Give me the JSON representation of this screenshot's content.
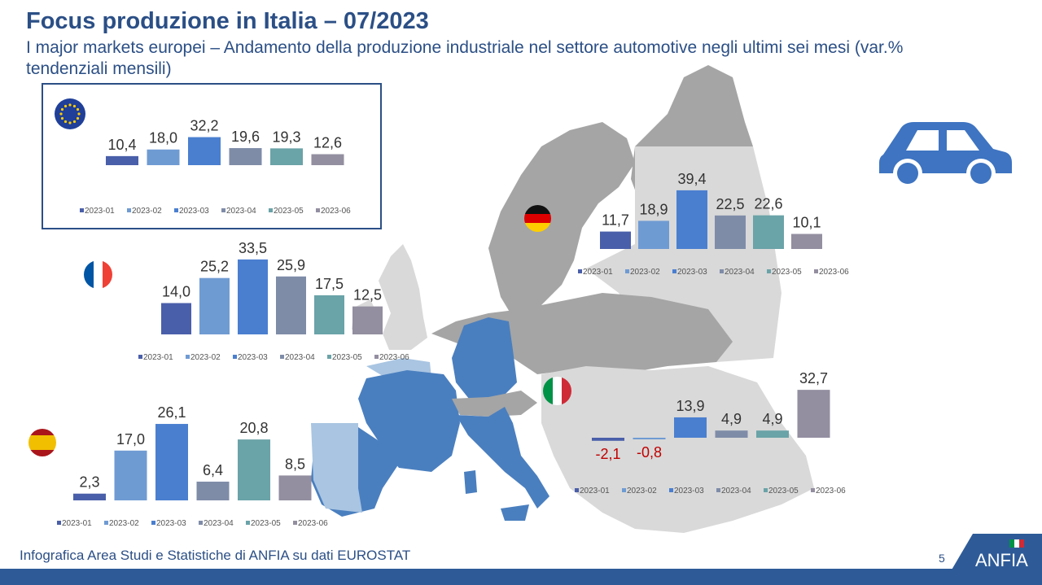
{
  "header": {
    "title": "Focus produzione in Italia – 07/2023",
    "subtitle": "I major markets europei – Andamento della produzione industriale nel settore automotive negli ultimi sei mesi (var.% tendenziali mensili)"
  },
  "footer": {
    "source_text": "Infografica Area Studi e Statistiche di ANFIA su dati EUROSTAT",
    "page_number": "5",
    "logo_text": "ANFIA"
  },
  "icons": {
    "car": "car-icon",
    "eu_flag": "eu-flag-icon",
    "de_flag": "germany-flag-icon",
    "fr_flag": "france-flag-icon",
    "it_flag": "italy-flag-icon",
    "es_flag": "spain-flag-icon"
  },
  "colors": {
    "title": "#2b4f86",
    "negative_label": "#c00000",
    "map_highlight": "#4a7fbf",
    "map_light": "#a9c5e2",
    "map_grey": "#a5a5a5",
    "map_light_grey": "#d9d9d9"
  },
  "chart_data": [
    {
      "id": "eu",
      "type": "bar",
      "categories": [
        "2023-01",
        "2023-02",
        "2023-03",
        "2023-04",
        "2023-05",
        "2023-06"
      ],
      "values": [
        10.4,
        18.0,
        32.2,
        19.6,
        19.3,
        12.6
      ],
      "labels": [
        "10,4",
        "18,0",
        "32,2",
        "19,6",
        "19,3",
        "12,6"
      ],
      "colors": [
        "#4a5faa",
        "#6f9bd3",
        "#4a7fd0",
        "#7f8ca8",
        "#6aa3a8",
        "#938ea0"
      ],
      "legend": "bottom"
    },
    {
      "id": "germany",
      "type": "bar",
      "categories": [
        "2023-01",
        "2023-02",
        "2023-03",
        "2023-04",
        "2023-05",
        "2023-06"
      ],
      "values": [
        11.7,
        18.9,
        39.4,
        22.5,
        22.6,
        10.1
      ],
      "labels": [
        "11,7",
        "18,9",
        "39,4",
        "22,5",
        "22,6",
        "10,1"
      ],
      "colors": [
        "#4a5faa",
        "#6f9bd3",
        "#4a7fd0",
        "#7f8ca8",
        "#6aa3a8",
        "#938ea0"
      ],
      "legend": "bottom"
    },
    {
      "id": "france",
      "type": "bar",
      "categories": [
        "2023-01",
        "2023-02",
        "2023-03",
        "2023-04",
        "2023-05",
        "2023-06"
      ],
      "values": [
        14.0,
        25.2,
        33.5,
        25.9,
        17.5,
        12.5
      ],
      "labels": [
        "14,0",
        "25,2",
        "33,5",
        "25,9",
        "17,5",
        "12,5"
      ],
      "colors": [
        "#4a5faa",
        "#6f9bd3",
        "#4a7fd0",
        "#7f8ca8",
        "#6aa3a8",
        "#938ea0"
      ],
      "legend": "bottom"
    },
    {
      "id": "italy",
      "type": "bar",
      "categories": [
        "2023-01",
        "2023-02",
        "2023-03",
        "2023-04",
        "2023-05",
        "2023-06"
      ],
      "values": [
        -2.1,
        -0.8,
        13.9,
        4.9,
        4.9,
        32.7
      ],
      "labels": [
        "-2,1",
        "-0,8",
        "13,9",
        "4,9",
        "4,9",
        "32,7"
      ],
      "colors": [
        "#4a5faa",
        "#6f9bd3",
        "#4a7fd0",
        "#7f8ca8",
        "#6aa3a8",
        "#938ea0"
      ],
      "legend": "bottom"
    },
    {
      "id": "spain",
      "type": "bar",
      "categories": [
        "2023-01",
        "2023-02",
        "2023-03",
        "2023-04",
        "2023-05",
        "2023-06"
      ],
      "values": [
        2.3,
        17.0,
        26.1,
        6.4,
        20.8,
        8.5
      ],
      "labels": [
        "2,3",
        "17,0",
        "26,1",
        "6,4",
        "20,8",
        "8,5"
      ],
      "colors": [
        "#4a5faa",
        "#6f9bd3",
        "#4a7fd0",
        "#7f8ca8",
        "#6aa3a8",
        "#938ea0"
      ],
      "legend": "bottom"
    }
  ]
}
